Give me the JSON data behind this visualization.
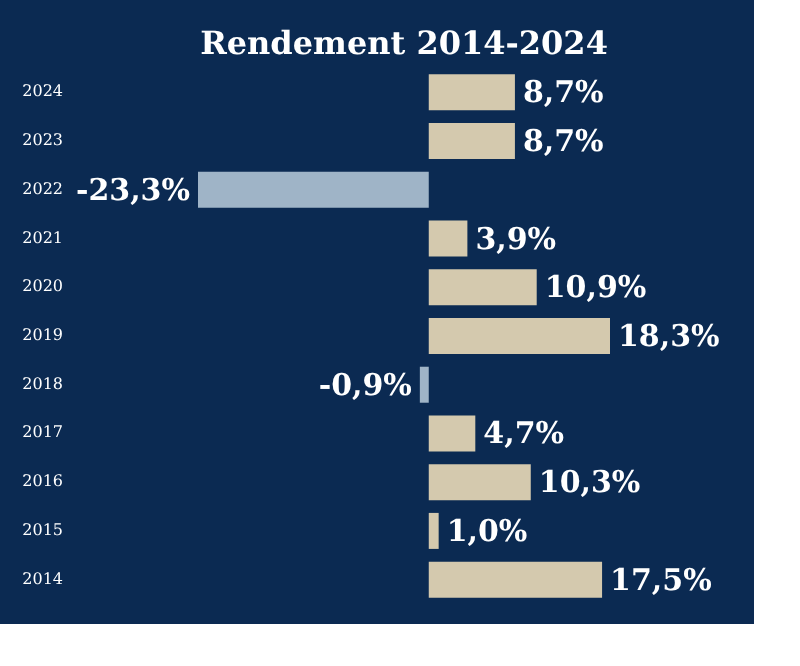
{
  "chart_data": {
    "type": "bar",
    "orientation": "horizontal",
    "title": "Rendement 2014-2024",
    "categories": [
      "2024",
      "2023",
      "2022",
      "2021",
      "2020",
      "2019",
      "2018",
      "2017",
      "2016",
      "2015",
      "2014"
    ],
    "values": [
      8.7,
      8.7,
      -23.3,
      3.9,
      10.9,
      18.3,
      -0.9,
      4.7,
      10.3,
      1.0,
      17.5
    ],
    "colors": [
      "#d4c9ae",
      "#d4c9ae",
      "#9fb4c7",
      "#d4c9ae",
      "#d4c9ae",
      "#d4c9ae",
      "#9fb4c7",
      "#d4c9ae",
      "#d4c9ae",
      "#d4c9ae",
      "#d4c9ae"
    ],
    "value_labels": [
      "8,7%",
      "8,7%",
      "-23,3%",
      "3,9%",
      "10,9%",
      "18,3%",
      "-0,9%",
      "4,7%",
      "10,3%",
      "1,0%",
      "17,5%"
    ],
    "tick_labels": "y"
  }
}
